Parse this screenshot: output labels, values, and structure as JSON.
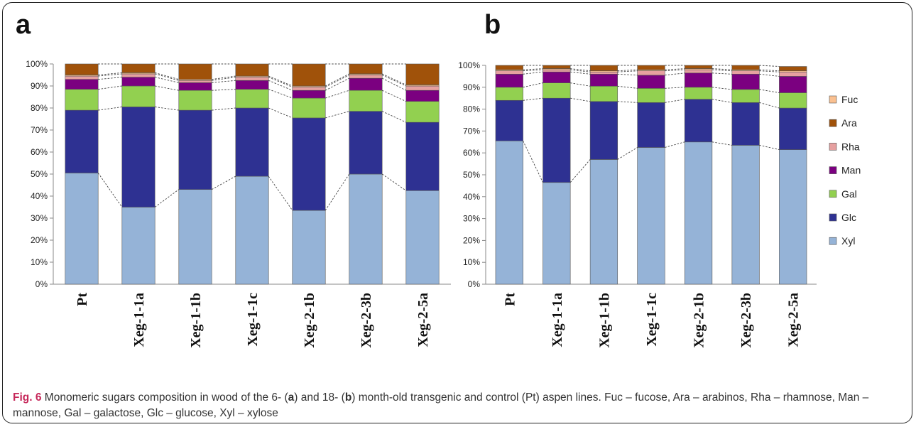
{
  "panels": [
    {
      "letter": "a"
    },
    {
      "letter": "b"
    }
  ],
  "caption": {
    "label": "Fig. 6",
    "part1": " Monomeric sugars composition in wood of the 6- (",
    "ref_a": "a",
    "part2": ") and 18- (",
    "ref_b": "b",
    "part3": ") month-old transgenic and control (Pt) aspen lines. Fuc – fucose, Ara – arabinos, Rha – rhamnose, Man – mannose, Gal – galactose, Glc – glucose, Xyl – xylose"
  },
  "chart_data": [
    {
      "type": "bar",
      "stacked": true,
      "panel": "a",
      "categories": [
        "Pt",
        "Xeg-1-1a",
        "Xeg-1-1b",
        "Xeg-1-1c",
        "Xeg-2-1b",
        "Xeg-2-3b",
        "Xeg-2-5a"
      ],
      "yticks": [
        "0%",
        "10%",
        "20%",
        "30%",
        "40%",
        "50%",
        "60%",
        "70%",
        "80%",
        "90%",
        "100%"
      ],
      "ylim": [
        0,
        100
      ],
      "series": [
        {
          "name": "Xyl",
          "color": "#95b3d7",
          "values": [
            50.5,
            35.0,
            43.0,
            49.0,
            33.5,
            50.0,
            42.5
          ]
        },
        {
          "name": "Glc",
          "color": "#2e3192",
          "values": [
            28.5,
            45.5,
            36.0,
            31.0,
            42.0,
            28.5,
            31.0
          ]
        },
        {
          "name": "Gal",
          "color": "#92d050",
          "values": [
            9.5,
            9.5,
            9.0,
            8.5,
            9.0,
            9.5,
            9.5
          ]
        },
        {
          "name": "Man",
          "color": "#7b0080",
          "values": [
            4.5,
            4.0,
            3.5,
            4.0,
            3.5,
            5.5,
            5.0
          ]
        },
        {
          "name": "Rha",
          "color": "#e6a0a0",
          "values": [
            1.5,
            1.5,
            1.0,
            1.5,
            1.5,
            1.5,
            2.0
          ]
        },
        {
          "name": "Fuc",
          "color": "#fac090",
          "values": [
            0.5,
            0.5,
            0.5,
            0.5,
            0.5,
            0.5,
            0.5
          ]
        },
        {
          "name": "Ara",
          "color": "#a0520a",
          "values": [
            5.0,
            4.0,
            7.0,
            5.5,
            10.0,
            4.5,
            9.5
          ]
        }
      ]
    },
    {
      "type": "bar",
      "stacked": true,
      "panel": "b",
      "categories": [
        "Pt",
        "Xeg-1-1a",
        "Xeg-1-1b",
        "Xeg-1-1c",
        "Xeg-2-1b",
        "Xeg-2-3b",
        "Xeg-2-5a"
      ],
      "yticks": [
        "0%",
        "10%",
        "20%",
        "30%",
        "40%",
        "50%",
        "60%",
        "70%",
        "80%",
        "90%",
        "100%"
      ],
      "ylim": [
        0,
        100
      ],
      "legend": {
        "placement": "right",
        "entries": [
          "Fuc",
          "Ara",
          "Rha",
          "Man",
          "Gal",
          "Glc",
          "Xyl"
        ]
      },
      "series": [
        {
          "name": "Xyl",
          "color": "#95b3d7",
          "values": [
            65.5,
            46.5,
            57.0,
            62.5,
            65.0,
            63.5,
            61.5
          ]
        },
        {
          "name": "Glc",
          "color": "#2e3192",
          "values": [
            18.5,
            38.5,
            26.5,
            20.5,
            19.5,
            19.5,
            19.0
          ]
        },
        {
          "name": "Gal",
          "color": "#92d050",
          "values": [
            6.0,
            7.0,
            7.0,
            6.5,
            5.5,
            6.0,
            7.0
          ]
        },
        {
          "name": "Man",
          "color": "#7b0080",
          "values": [
            6.0,
            5.0,
            5.5,
            6.0,
            6.5,
            7.0,
            7.5
          ]
        },
        {
          "name": "Rha",
          "color": "#e6a0a0",
          "values": [
            1.5,
            1.0,
            1.0,
            2.0,
            1.5,
            1.5,
            2.0
          ]
        },
        {
          "name": "Fuc",
          "color": "#fac090",
          "values": [
            0.5,
            0.5,
            0.5,
            0.5,
            0.5,
            0.5,
            0.5
          ]
        },
        {
          "name": "Ara",
          "color": "#a0520a",
          "values": [
            2.0,
            1.5,
            2.5,
            2.0,
            1.5,
            2.0,
            2.0
          ]
        }
      ]
    }
  ]
}
